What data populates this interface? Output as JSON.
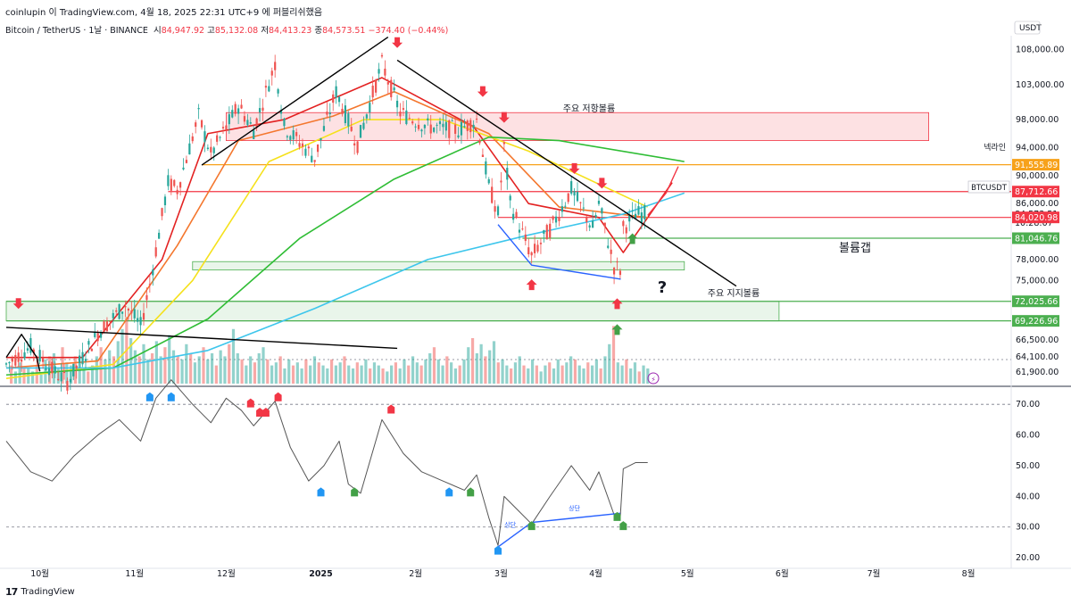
{
  "header": {
    "caption": "coinlupin 이 TradingView.com, 4월 18, 2025 22:31 UTC+9 에 퍼블리쉬했음"
  },
  "legend": {
    "symbol": "Bitcoin / TetherUS · 1날 · BINANCE",
    "open_label": "시",
    "open": "84,947.92",
    "high_label": "고",
    "high": "85,132.08",
    "low_label": "저",
    "low": "84,413.23",
    "close_label": "종",
    "close": "84,573.51",
    "change": "−374.40 (−0.44%)"
  },
  "footer": {
    "brand": "TradingView"
  },
  "colors": {
    "up": "#26a69a",
    "down": "#ef5350",
    "accent_orange": "#f7a21b",
    "red_line": "#f23645",
    "green_line": "#4caf50"
  },
  "chart_data": {
    "type": "candlestick",
    "currency": "USDT",
    "price_axis": {
      "ticks": [
        "108,000.00",
        "103,000.00",
        "98,000.00",
        "94,000.00",
        "90,000.00",
        "86,000.00",
        "78,000.00",
        "75,000.00",
        "66,500.00",
        "64,100.00",
        "61,900.00"
      ],
      "tick_values": [
        108000,
        103000,
        98000,
        94000,
        90000,
        86000,
        78000,
        75000,
        66500,
        64100,
        61900
      ],
      "ylim": [
        60000,
        110000
      ]
    },
    "price_labels": [
      {
        "text": "91,555.89",
        "value": 91555.89,
        "color": "#f7a21b"
      },
      {
        "text": "87,712.66",
        "value": 87712.66,
        "color": "#f23645"
      },
      {
        "text": "84,573.51",
        "value": 84573.51,
        "color": "#ffffff"
      },
      {
        "text": "10:28:07",
        "value": 83300,
        "color": "#ffffff"
      },
      {
        "text": "84,020.98",
        "value": 84020.98,
        "color": "#f23645"
      },
      {
        "text": "81,046.76",
        "value": 81046.76,
        "color": "#4caf50"
      },
      {
        "text": "72,025.66",
        "value": 72025.66,
        "color": "#4caf50"
      },
      {
        "text": "69,226.96",
        "value": 69226.96,
        "color": "#4caf50"
      }
    ],
    "ticker_tag": "BTCUSDT",
    "neckline_label": "넥라인",
    "annotations": [
      "주요 저항볼륨",
      "볼륨갭",
      "주요 지지볼륨",
      "?"
    ],
    "divergence_labels": [
      "상단",
      "상단"
    ],
    "zones": [
      {
        "name": "resistance",
        "from": 95000,
        "to": 99000,
        "start": "2024-12-01",
        "end": "2025-07-19"
      },
      {
        "name": "volume-gap",
        "from": 76500,
        "to": 77700,
        "start": "2024-11-20",
        "end": "2025-04-30"
      },
      {
        "name": "support",
        "from": 69226.96,
        "to": 72025.66,
        "start": "2024-09-20",
        "end": "2025-05-31"
      }
    ],
    "horizontal_lines": [
      91555.89,
      87712.66,
      84020.98,
      81046.76,
      72025.66,
      69226.96
    ],
    "time_axis": {
      "labels": [
        "10월",
        "11월",
        "12월",
        "2025",
        "2월",
        "3월",
        "4월",
        "5월",
        "6월",
        "7월",
        "8월"
      ],
      "dates": [
        "2024-10-01",
        "2024-11-01",
        "2024-12-01",
        "2025-01-01",
        "2025-02-01",
        "2025-03-01",
        "2025-04-01",
        "2025-05-01",
        "2025-06-01",
        "2025-07-01",
        "2025-08-01"
      ]
    },
    "date_range": [
      "2024-09-20",
      "2025-08-15"
    ],
    "price_path": [
      [
        "2024-09-20",
        63000
      ],
      [
        "2024-09-28",
        65500
      ],
      [
        "2024-10-05",
        62200
      ],
      [
        "2024-10-10",
        60500
      ],
      [
        "2024-10-20",
        67500
      ],
      [
        "2024-10-29",
        71500
      ],
      [
        "2024-11-03",
        68500
      ],
      [
        "2024-11-06",
        74500
      ],
      [
        "2024-11-12",
        89000
      ],
      [
        "2024-11-15",
        88000
      ],
      [
        "2024-11-22",
        98500
      ],
      [
        "2024-11-26",
        93000
      ],
      [
        "2024-12-05",
        100000
      ],
      [
        "2024-12-10",
        96500
      ],
      [
        "2024-12-17",
        106000
      ],
      [
        "2024-12-20",
        97000
      ],
      [
        "2024-12-30",
        92500
      ],
      [
        "2025-01-06",
        102000
      ],
      [
        "2025-01-13",
        94500
      ],
      [
        "2025-01-21",
        106000
      ],
      [
        "2025-01-27",
        99000
      ],
      [
        "2025-02-05",
        97000
      ],
      [
        "2025-02-15",
        96500
      ],
      [
        "2025-02-21",
        98000
      ],
      [
        "2025-02-25",
        88500
      ],
      [
        "2025-02-28",
        84500
      ],
      [
        "2025-03-02",
        94000
      ],
      [
        "2025-03-04",
        86000
      ],
      [
        "2025-03-11",
        78500
      ],
      [
        "2025-03-18",
        83000
      ],
      [
        "2025-03-24",
        88000
      ],
      [
        "2025-03-31",
        82500
      ],
      [
        "2025-04-02",
        86000
      ],
      [
        "2025-04-07",
        77000
      ],
      [
        "2025-04-09",
        76500
      ],
      [
        "2025-04-10",
        82500
      ],
      [
        "2025-04-14",
        84500
      ],
      [
        "2025-04-18",
        84573.51
      ]
    ],
    "moving_averages": [
      {
        "name": "EMA short",
        "color": "#e32222",
        "points": [
          [
            "2024-09-20",
            64000
          ],
          [
            "2024-10-15",
            64000
          ],
          [
            "2024-11-10",
            78000
          ],
          [
            "2024-11-25",
            96000
          ],
          [
            "2024-12-20",
            98000
          ],
          [
            "2025-01-21",
            104000
          ],
          [
            "2025-02-20",
            97000
          ],
          [
            "2025-03-10",
            86000
          ],
          [
            "2025-04-02",
            84000
          ],
          [
            "2025-04-10",
            79000
          ],
          [
            "2025-04-18",
            84000
          ],
          [
            "2025-04-26",
            89000
          ]
        ]
      },
      {
        "name": "EMA 21",
        "color": "#f4772e",
        "points": [
          [
            "2024-09-20",
            62500
          ],
          [
            "2024-10-20",
            63500
          ],
          [
            "2024-11-15",
            80000
          ],
          [
            "2024-12-05",
            95000
          ],
          [
            "2025-01-05",
            98500
          ],
          [
            "2025-01-25",
            102000
          ],
          [
            "2025-02-25",
            96000
          ],
          [
            "2025-03-20",
            85500
          ],
          [
            "2025-04-18",
            84000
          ]
        ]
      },
      {
        "name": "EMA 50",
        "color": "#f5e11b",
        "points": [
          [
            "2024-09-20",
            61000
          ],
          [
            "2024-10-25",
            63000
          ],
          [
            "2024-11-20",
            75000
          ],
          [
            "2024-12-15",
            92000
          ],
          [
            "2025-01-15",
            98000
          ],
          [
            "2025-02-10",
            98000
          ],
          [
            "2025-03-10",
            93500
          ],
          [
            "2025-04-18",
            85500
          ]
        ]
      },
      {
        "name": "EMA 100",
        "color": "#2fbd35",
        "points": [
          [
            "2024-09-20",
            61500
          ],
          [
            "2024-10-25",
            62500
          ],
          [
            "2024-11-25",
            69500
          ],
          [
            "2024-12-25",
            81000
          ],
          [
            "2025-01-25",
            89500
          ],
          [
            "2025-02-25",
            95500
          ],
          [
            "2025-03-20",
            95000
          ],
          [
            "2025-04-30",
            92000
          ]
        ]
      },
      {
        "name": "EMA 200",
        "color": "#3dc6ec",
        "points": [
          [
            "2024-09-20",
            62500
          ],
          [
            "2024-10-25",
            62500
          ],
          [
            "2024-11-25",
            65000
          ],
          [
            "2024-12-30",
            71000
          ],
          [
            "2025-02-05",
            78000
          ],
          [
            "2025-03-10",
            81500
          ],
          [
            "2025-04-10",
            84500
          ],
          [
            "2025-04-30",
            87500
          ]
        ]
      }
    ],
    "trendlines": [
      {
        "color": "#000000",
        "points": [
          [
            "2024-11-23",
            91500
          ],
          [
            "2025-01-23",
            109800
          ]
        ]
      },
      {
        "color": "#000000",
        "points": [
          [
            "2025-01-26",
            106500
          ],
          [
            "2025-05-17",
            74200
          ]
        ]
      },
      {
        "color": "#000000",
        "points": [
          [
            "2024-09-20",
            68300
          ],
          [
            "2025-01-26",
            65300
          ]
        ]
      },
      {
        "color": "#000000",
        "points": [
          [
            "2024-09-20",
            64000
          ],
          [
            "2024-09-25",
            67300
          ],
          [
            "2024-09-30",
            64000
          ],
          [
            "2024-10-01",
            62000
          ]
        ]
      },
      {
        "color": "#2962ff",
        "points": [
          [
            "2025-02-28",
            83000
          ],
          [
            "2025-03-11",
            77200
          ],
          [
            "2025-04-09",
            75200
          ],
          [
            "2025-03-11",
            77200
          ]
        ]
      },
      {
        "color": "#f23645",
        "points": [
          [
            "2025-04-18",
            84300
          ],
          [
            "2025-04-24",
            87500
          ],
          [
            "2025-04-28",
            91300
          ]
        ]
      }
    ],
    "down_arrows": [
      [
        "2024-09-24",
        71200
      ],
      [
        "2025-01-26",
        108500
      ],
      [
        "2025-02-23",
        101500
      ],
      [
        "2025-03-02",
        97800
      ],
      [
        "2025-03-25",
        90500
      ],
      [
        "2025-04-03",
        88400
      ]
    ],
    "up_arrows": [
      [
        "2025-03-11",
        74900
      ],
      [
        "2025-04-08",
        72200
      ],
      [
        "2025-04-13",
        81500
      ],
      [
        "2025-04-08",
        68500
      ]
    ],
    "volume": [
      6,
      4,
      7,
      5,
      5,
      4,
      6,
      3,
      8,
      9,
      10,
      5,
      12,
      7,
      6,
      9,
      7,
      5,
      4,
      6,
      9,
      12,
      8,
      11,
      9,
      14,
      18,
      22,
      15,
      11,
      9,
      13,
      8,
      10,
      14,
      9,
      12,
      16,
      11,
      9,
      8,
      13,
      10,
      7,
      9,
      12,
      8,
      10,
      6,
      11,
      9,
      13,
      18,
      10,
      8,
      6,
      9,
      7,
      10,
      12,
      8,
      6,
      7,
      9,
      5,
      8,
      6,
      7,
      5,
      8,
      6,
      9,
      7,
      6,
      5,
      8,
      6,
      7,
      9,
      6,
      5,
      7,
      6,
      8,
      5,
      7,
      6,
      5,
      4,
      6,
      7,
      5,
      8,
      6,
      9,
      7,
      6,
      8,
      10,
      12,
      8,
      6,
      9,
      7,
      5,
      6,
      8,
      12,
      15,
      10,
      13,
      9,
      11,
      14,
      7,
      8,
      6,
      5,
      7,
      9,
      6,
      5,
      8,
      6,
      4,
      6,
      7,
      5,
      8,
      6,
      7,
      9,
      8,
      6,
      5,
      7,
      6,
      8,
      5,
      9,
      13,
      19,
      7,
      6,
      8,
      5,
      7,
      4,
      6,
      5
    ],
    "rsi": {
      "range": [
        18,
        75
      ],
      "ticks": [
        "70.00",
        "60.00",
        "50.00",
        "40.00",
        "30.00",
        "20.00"
      ],
      "tick_values": [
        70,
        60,
        50,
        40,
        30,
        20
      ],
      "reference_lines": [
        70,
        30
      ],
      "path": [
        [
          "2024-09-20",
          58
        ],
        [
          "2024-09-28",
          48
        ],
        [
          "2024-10-05",
          45
        ],
        [
          "2024-10-12",
          53
        ],
        [
          "2024-10-20",
          60
        ],
        [
          "2024-10-27",
          65
        ],
        [
          "2024-11-03",
          58
        ],
        [
          "2024-11-08",
          72
        ],
        [
          "2024-11-13",
          78
        ],
        [
          "2024-11-20",
          70
        ],
        [
          "2024-11-26",
          64
        ],
        [
          "2024-12-01",
          72
        ],
        [
          "2024-12-06",
          68
        ],
        [
          "2024-12-10",
          63
        ],
        [
          "2024-12-17",
          71
        ],
        [
          "2024-12-22",
          56
        ],
        [
          "2024-12-28",
          45
        ],
        [
          "2025-01-02",
          50
        ],
        [
          "2025-01-07",
          58
        ],
        [
          "2025-01-10",
          44
        ],
        [
          "2025-01-14",
          41
        ],
        [
          "2025-01-21",
          65
        ],
        [
          "2025-01-28",
          54
        ],
        [
          "2025-02-03",
          48
        ],
        [
          "2025-02-10",
          45
        ],
        [
          "2025-02-17",
          42
        ],
        [
          "2025-02-21",
          47
        ],
        [
          "2025-02-25",
          33
        ],
        [
          "2025-02-28",
          24
        ],
        [
          "2025-03-02",
          40
        ],
        [
          "2025-03-06",
          36
        ],
        [
          "2025-03-11",
          31
        ],
        [
          "2025-03-17",
          40
        ],
        [
          "2025-03-24",
          50
        ],
        [
          "2025-03-30",
          42
        ],
        [
          "2025-04-02",
          48
        ],
        [
          "2025-04-07",
          34
        ],
        [
          "2025-04-09",
          33
        ],
        [
          "2025-04-10",
          49
        ],
        [
          "2025-04-14",
          51
        ],
        [
          "2025-04-18",
          51
        ]
      ],
      "divergence_line": [
        [
          "2025-02-28",
          23.5
        ],
        [
          "2025-03-11",
          31.5
        ],
        [
          "2025-04-09",
          34.5
        ]
      ],
      "red_markers": [
        [
          "2024-12-09",
          69
        ],
        [
          "2024-12-12",
          66
        ],
        [
          "2024-12-14",
          66
        ],
        [
          "2024-12-18",
          71
        ],
        [
          "2025-01-24",
          67
        ]
      ],
      "blue_markers": [
        [
          "2024-11-06",
          71
        ],
        [
          "2024-11-13",
          71
        ],
        [
          "2025-01-01",
          40
        ],
        [
          "2025-02-12",
          40
        ],
        [
          "2025-02-28",
          21
        ]
      ],
      "green_markers": [
        [
          "2025-01-12",
          40
        ],
        [
          "2025-02-19",
          40
        ],
        [
          "2025-03-11",
          29
        ],
        [
          "2025-04-08",
          32
        ],
        [
          "2025-04-10",
          29
        ]
      ]
    }
  }
}
